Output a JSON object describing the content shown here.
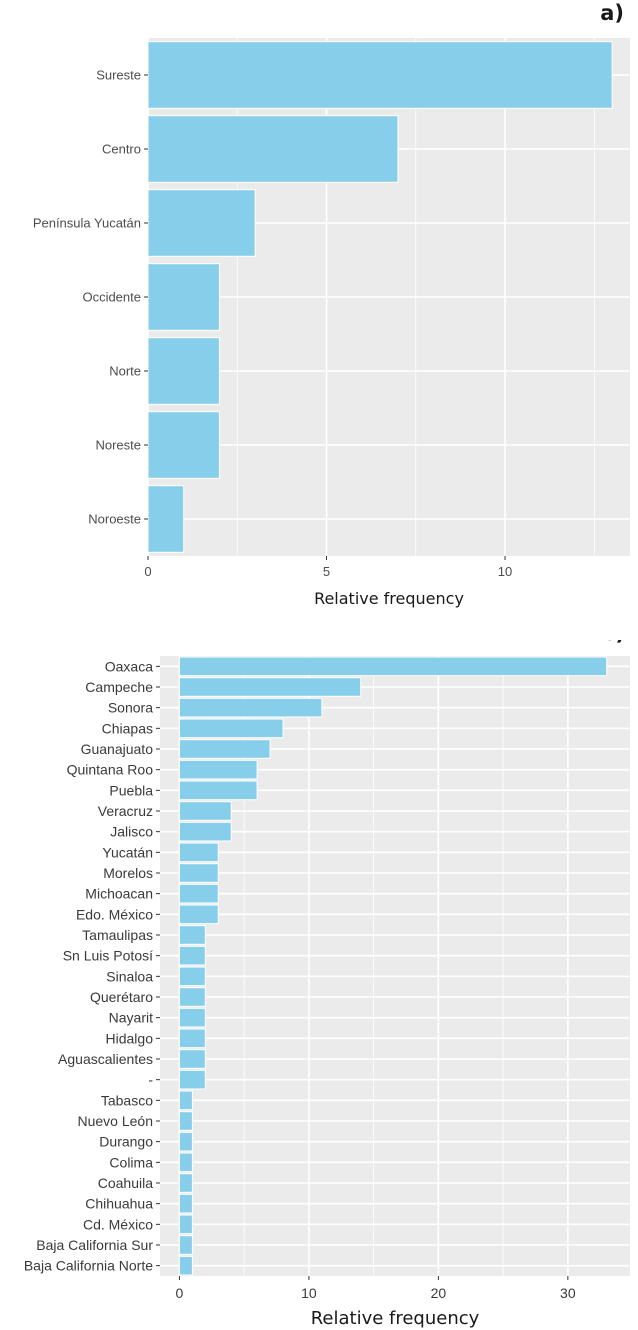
{
  "chart_data": [
    {
      "panel_label": "a)",
      "type": "bar",
      "orientation": "horizontal",
      "categories": [
        "Sureste",
        "Centro",
        "Península Yucatán",
        "Occidente",
        "Norte",
        "Noreste",
        "Noroeste"
      ],
      "values": [
        13,
        7,
        3,
        2,
        2,
        2,
        1
      ],
      "xlabel": "Relative frequency",
      "ylabel": "",
      "xlim": [
        0,
        13.5
      ],
      "xticks": [
        0,
        5,
        10
      ],
      "grid": true,
      "bar_color": "#87ceeb",
      "panel_background": "#ebebeb"
    },
    {
      "panel_label": "b)",
      "type": "bar",
      "orientation": "horizontal",
      "categories": [
        "Oaxaca",
        "Campeche",
        "Sonora",
        "Chiapas",
        "Guanajuato",
        "Quintana Roo",
        "Puebla",
        "Veracruz",
        "Jalisco",
        "Yucatán",
        "Morelos",
        "Michoacan",
        "Edo. México",
        "Tamaulipas",
        "Sn Luis Potosí",
        "Sinaloa",
        "Querétaro",
        "Nayarit",
        "Hidalgo",
        "Aguascalientes",
        "-",
        "Tabasco",
        "Nuevo León",
        "Durango",
        "Colima",
        "Coahuila",
        "Chihuahua",
        "Cd. México",
        "Baja California Sur",
        "Baja California Norte"
      ],
      "values": [
        33,
        14,
        11,
        8,
        7,
        6,
        6,
        4,
        4,
        3,
        3,
        3,
        3,
        2,
        2,
        2,
        2,
        2,
        2,
        2,
        2,
        1,
        1,
        1,
        1,
        1,
        1,
        1,
        1,
        1
      ],
      "xlabel": "Relative frequency",
      "ylabel": "",
      "xlim": [
        -1.5,
        34.8
      ],
      "xticks": [
        0,
        10,
        20,
        30
      ],
      "grid": true,
      "bar_color": "#87ceeb",
      "panel_background": "#ebebeb"
    }
  ]
}
